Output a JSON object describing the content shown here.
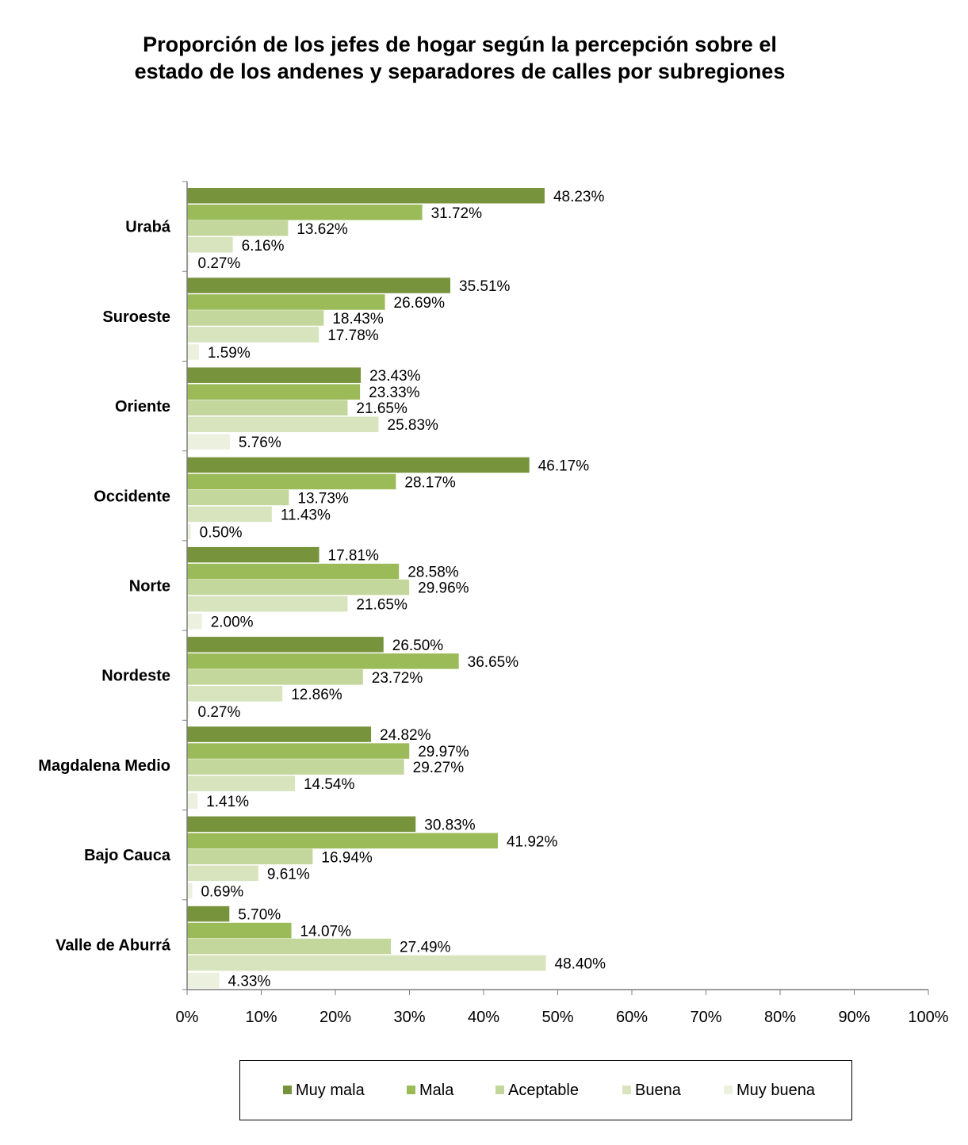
{
  "chart_data": {
    "type": "bar",
    "orientation": "horizontal",
    "title_lines": [
      "Proporción de los jefes de  hogar según la percepción sobre el",
      "estado de los andenes y separadores de calles por subregiones"
    ],
    "categories": [
      "Urabá",
      "Suroeste",
      "Oriente",
      "Occidente",
      "Norte",
      "Nordeste",
      "Magdalena Medio",
      "Bajo Cauca",
      "Valle de Aburrá"
    ],
    "series": [
      {
        "name": "Muy mala",
        "color": "#77933c",
        "values": [
          48.23,
          35.51,
          23.43,
          46.17,
          17.81,
          26.5,
          24.82,
          30.83,
          5.7
        ],
        "labels": [
          "48.23%",
          "35.51%",
          "23.43%",
          "46.17%",
          "17.81%",
          "26.50%",
          "24.82%",
          "30.83%",
          "5.70%"
        ]
      },
      {
        "name": "Mala",
        "color": "#9bbb59",
        "values": [
          31.72,
          26.69,
          23.33,
          28.17,
          28.58,
          36.65,
          29.97,
          41.92,
          14.07
        ],
        "labels": [
          "31.72%",
          "26.69%",
          "23.33%",
          "28.17%",
          "28.58%",
          "36.65%",
          "29.97%",
          "41.92%",
          "14.07%"
        ]
      },
      {
        "name": "Aceptable",
        "color": "#c3d69b",
        "values": [
          13.62,
          18.43,
          21.65,
          13.73,
          29.96,
          23.72,
          29.27,
          16.94,
          27.49
        ],
        "labels": [
          "13.62%",
          "18.43%",
          "21.65%",
          "13.73%",
          "29.96%",
          "23.72%",
          "29.27%",
          "16.94%",
          "27.49%"
        ]
      },
      {
        "name": "Buena",
        "color": "#d7e4bd",
        "values": [
          6.16,
          17.78,
          25.83,
          11.43,
          21.65,
          12.86,
          14.54,
          9.61,
          48.4
        ],
        "labels": [
          "6.16%",
          "17.78%",
          "25.83%",
          "11.43%",
          "21.65%",
          "12.86%",
          "14.54%",
          "9.61%",
          "48.40%"
        ]
      },
      {
        "name": "Muy buena",
        "color": "#ebf1de",
        "values": [
          0.27,
          1.59,
          5.76,
          0.5,
          2.0,
          0.27,
          1.41,
          0.69,
          4.33
        ],
        "labels": [
          "0.27%",
          "1.59%",
          "5.76%",
          "0.50%",
          "2.00%",
          "0.27%",
          "1.41%",
          "0.69%",
          "4.33%"
        ]
      }
    ],
    "x_ticks": [
      "0%",
      "10%",
      "20%",
      "30%",
      "40%",
      "50%",
      "60%",
      "70%",
      "80%",
      "90%",
      "100%"
    ],
    "xlim": [
      0,
      100
    ],
    "xlabel": "",
    "ylabel": "",
    "grid": false,
    "legend_position": "bottom"
  }
}
